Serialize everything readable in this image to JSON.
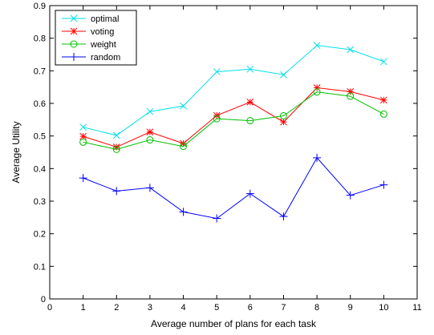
{
  "chart_data": {
    "type": "line",
    "title": "",
    "xlabel": "Average number of plans for each task",
    "ylabel": "Average Utility",
    "xlim": [
      0,
      11
    ],
    "ylim": [
      0,
      0.9
    ],
    "xticks": [
      "0",
      "1",
      "2",
      "3",
      "4",
      "5",
      "6",
      "7",
      "8",
      "9",
      "10",
      "11"
    ],
    "yticks": [
      "0",
      "0.1",
      "0.2",
      "0.3",
      "0.4",
      "0.5",
      "0.6",
      "0.7",
      "0.8",
      "0.9"
    ],
    "grid": false,
    "legend_position": "top-left",
    "x": [
      1,
      2,
      3,
      4,
      5,
      6,
      7,
      8,
      9,
      10
    ],
    "series": [
      {
        "name": "optimal",
        "color": "#00e0e8",
        "marker": "x",
        "values": [
          0.527,
          0.502,
          0.575,
          0.592,
          0.697,
          0.705,
          0.688,
          0.778,
          0.765,
          0.728
        ]
      },
      {
        "name": "voting",
        "color": "#ff0000",
        "marker": "star",
        "values": [
          0.499,
          0.466,
          0.512,
          0.477,
          0.563,
          0.604,
          0.543,
          0.648,
          0.636,
          0.61
        ]
      },
      {
        "name": "weight",
        "color": "#00c000",
        "marker": "circle",
        "values": [
          0.481,
          0.459,
          0.488,
          0.468,
          0.553,
          0.547,
          0.562,
          0.635,
          0.622,
          0.567
        ]
      },
      {
        "name": "random",
        "color": "#0000ff",
        "marker": "plus",
        "values": [
          0.371,
          0.331,
          0.341,
          0.267,
          0.247,
          0.323,
          0.253,
          0.433,
          0.318,
          0.35
        ]
      }
    ]
  }
}
